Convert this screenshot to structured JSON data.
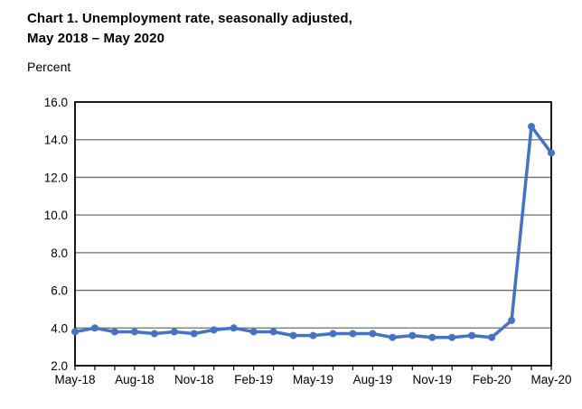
{
  "title": {
    "line1": "Chart 1. Unemployment rate, seasonally adjusted,",
    "line2": "May 2018 – May 2020"
  },
  "y_axis_unit_label": "Percent",
  "chart_data": {
    "type": "line",
    "title": "Chart 1. Unemployment rate, seasonally adjusted, May 2018 – May 2020",
    "ylabel": "Percent",
    "xlabel": "",
    "x": [
      "May-18",
      "Jun-18",
      "Jul-18",
      "Aug-18",
      "Sep-18",
      "Oct-18",
      "Nov-18",
      "Dec-18",
      "Jan-19",
      "Feb-19",
      "Mar-19",
      "Apr-19",
      "May-19",
      "Jun-19",
      "Jul-19",
      "Aug-19",
      "Sep-19",
      "Oct-19",
      "Nov-19",
      "Dec-19",
      "Jan-20",
      "Feb-20",
      "Mar-20",
      "Apr-20",
      "May-20"
    ],
    "values": [
      3.8,
      4.0,
      3.8,
      3.8,
      3.7,
      3.8,
      3.7,
      3.9,
      4.0,
      3.8,
      3.8,
      3.6,
      3.6,
      3.7,
      3.7,
      3.7,
      3.5,
      3.6,
      3.5,
      3.5,
      3.6,
      3.5,
      4.4,
      14.7,
      13.3
    ],
    "x_tick_labels_shown": [
      "May-18",
      "Aug-18",
      "Nov-18",
      "Feb-19",
      "May-19",
      "Aug-19",
      "Nov-19",
      "Feb-20",
      "May-20"
    ],
    "x_label_every": 3,
    "ylim": [
      2.0,
      16.0
    ],
    "y_tick_step": 2.0,
    "y_tick_labels": [
      "2.0",
      "4.0",
      "6.0",
      "8.0",
      "10.0",
      "12.0",
      "14.0",
      "16.0"
    ],
    "grid": "horizontal",
    "legend": "none",
    "line_color": "#4472C4",
    "marker_color": "#4472C4",
    "grid_color": "#6e6e6e",
    "frame_color": "#000000"
  }
}
